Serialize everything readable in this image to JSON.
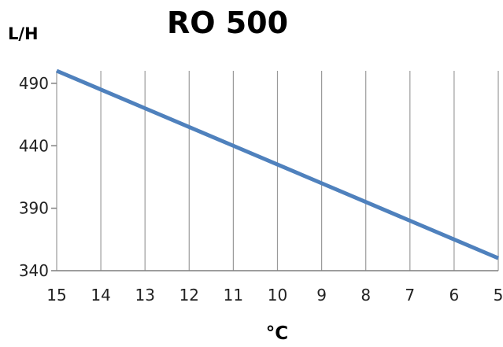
{
  "chart_data": {
    "type": "line",
    "title": "RO 500",
    "ylabel": "L/H",
    "xlabel": "°C",
    "x": [
      15,
      14,
      13,
      12,
      11,
      10,
      9,
      8,
      7,
      6,
      5
    ],
    "x_reversed": true,
    "xlim": [
      15,
      5
    ],
    "ylim": [
      340,
      500
    ],
    "yticks": [
      340,
      390,
      440,
      490
    ],
    "series": [
      {
        "values": [
          500,
          485,
          470,
          455,
          440,
          425,
          410,
          395,
          380,
          365,
          350
        ],
        "color": "#4f81bd"
      }
    ],
    "grid": {
      "vertical": true,
      "horizontal": false
    },
    "legend": "none"
  }
}
